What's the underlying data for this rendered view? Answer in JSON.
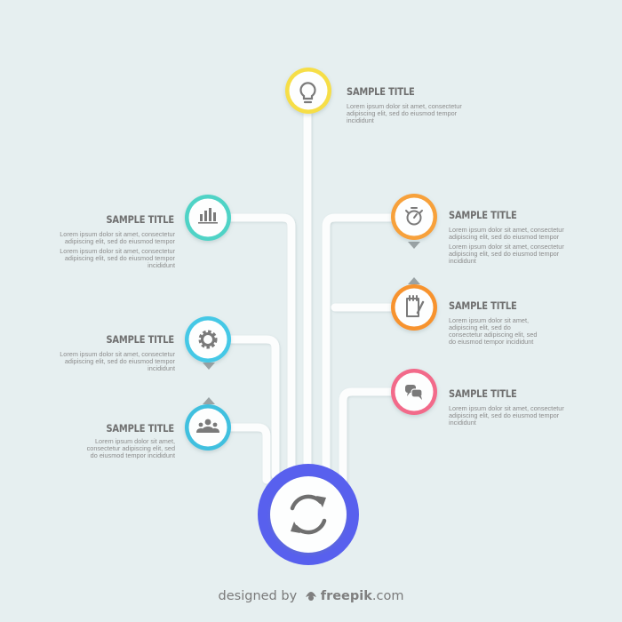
{
  "nodes": [
    {
      "id": "top",
      "title": "SAMPLE TITLE",
      "lines": [
        "Lorem ipsum dolor sit amet, consectetur",
        "adipiscing elit, sed do eiusmod tempor",
        "incididunt"
      ],
      "color": "#f6de47",
      "icon": "lightbulb-icon"
    },
    {
      "id": "left-1",
      "title": "SAMPLE TITLE",
      "lines": [
        "Lorem ipsum dolor sit amet, consectetur",
        "adipiscing elit, sed do eiusmod tempor",
        "Lorem ipsum dolor sit amet, consectetur",
        "adipiscing elit, sed do eiusmod tempor",
        "incididunt"
      ],
      "color": "#4fd3c6",
      "icon": "bar-chart-icon"
    },
    {
      "id": "left-2",
      "title": "SAMPLE TITLE",
      "lines": [
        "Lorem ipsum dolor sit amet, consectetur",
        "adipiscing elit, sed do eiusmod tempor",
        "incididunt"
      ],
      "color": "#44c8e6",
      "icon": "gear-icon"
    },
    {
      "id": "left-3",
      "title": "SAMPLE TITLE",
      "lines": [
        "Lorem ipsum dolor sit amet,",
        "consectetur adipiscing elit, sed",
        "do eiusmod tempor incididunt"
      ],
      "color": "#40c0df",
      "icon": "users-icon"
    },
    {
      "id": "right-1",
      "title": "SAMPLE TITLE",
      "lines": [
        "Lorem ipsum dolor sit amet, consectetur",
        "adipiscing elit, sed do eiusmod tempor",
        "Lorem ipsum dolor sit amet, consectetur",
        "adipiscing elit, sed do eiusmod tempor",
        "incididunt"
      ],
      "color": "#f7a13b",
      "icon": "stopwatch-icon"
    },
    {
      "id": "right-2",
      "title": "SAMPLE TITLE",
      "lines": [
        "Lorem ipsum dolor sit amet,",
        "adipiscing elit, sed do",
        "consectetur adipiscing elit, sed",
        "do eiusmod tempor incididunt"
      ],
      "color": "#f7932f",
      "icon": "notepad-icon"
    },
    {
      "id": "right-3",
      "title": "SAMPLE TITLE",
      "lines": [
        "Lorem ipsum dolor sit amet, consectetur",
        "adipiscing elit, sed do eiusmod tempor",
        "incididunt"
      ],
      "color": "#f26b8a",
      "icon": "chat-icon"
    }
  ],
  "hub": {
    "color": "#5860ee",
    "icon": "refresh-cycle-icon"
  },
  "footer": {
    "pre": "designed by",
    "brand": "freepik",
    "suffix": ".com"
  }
}
